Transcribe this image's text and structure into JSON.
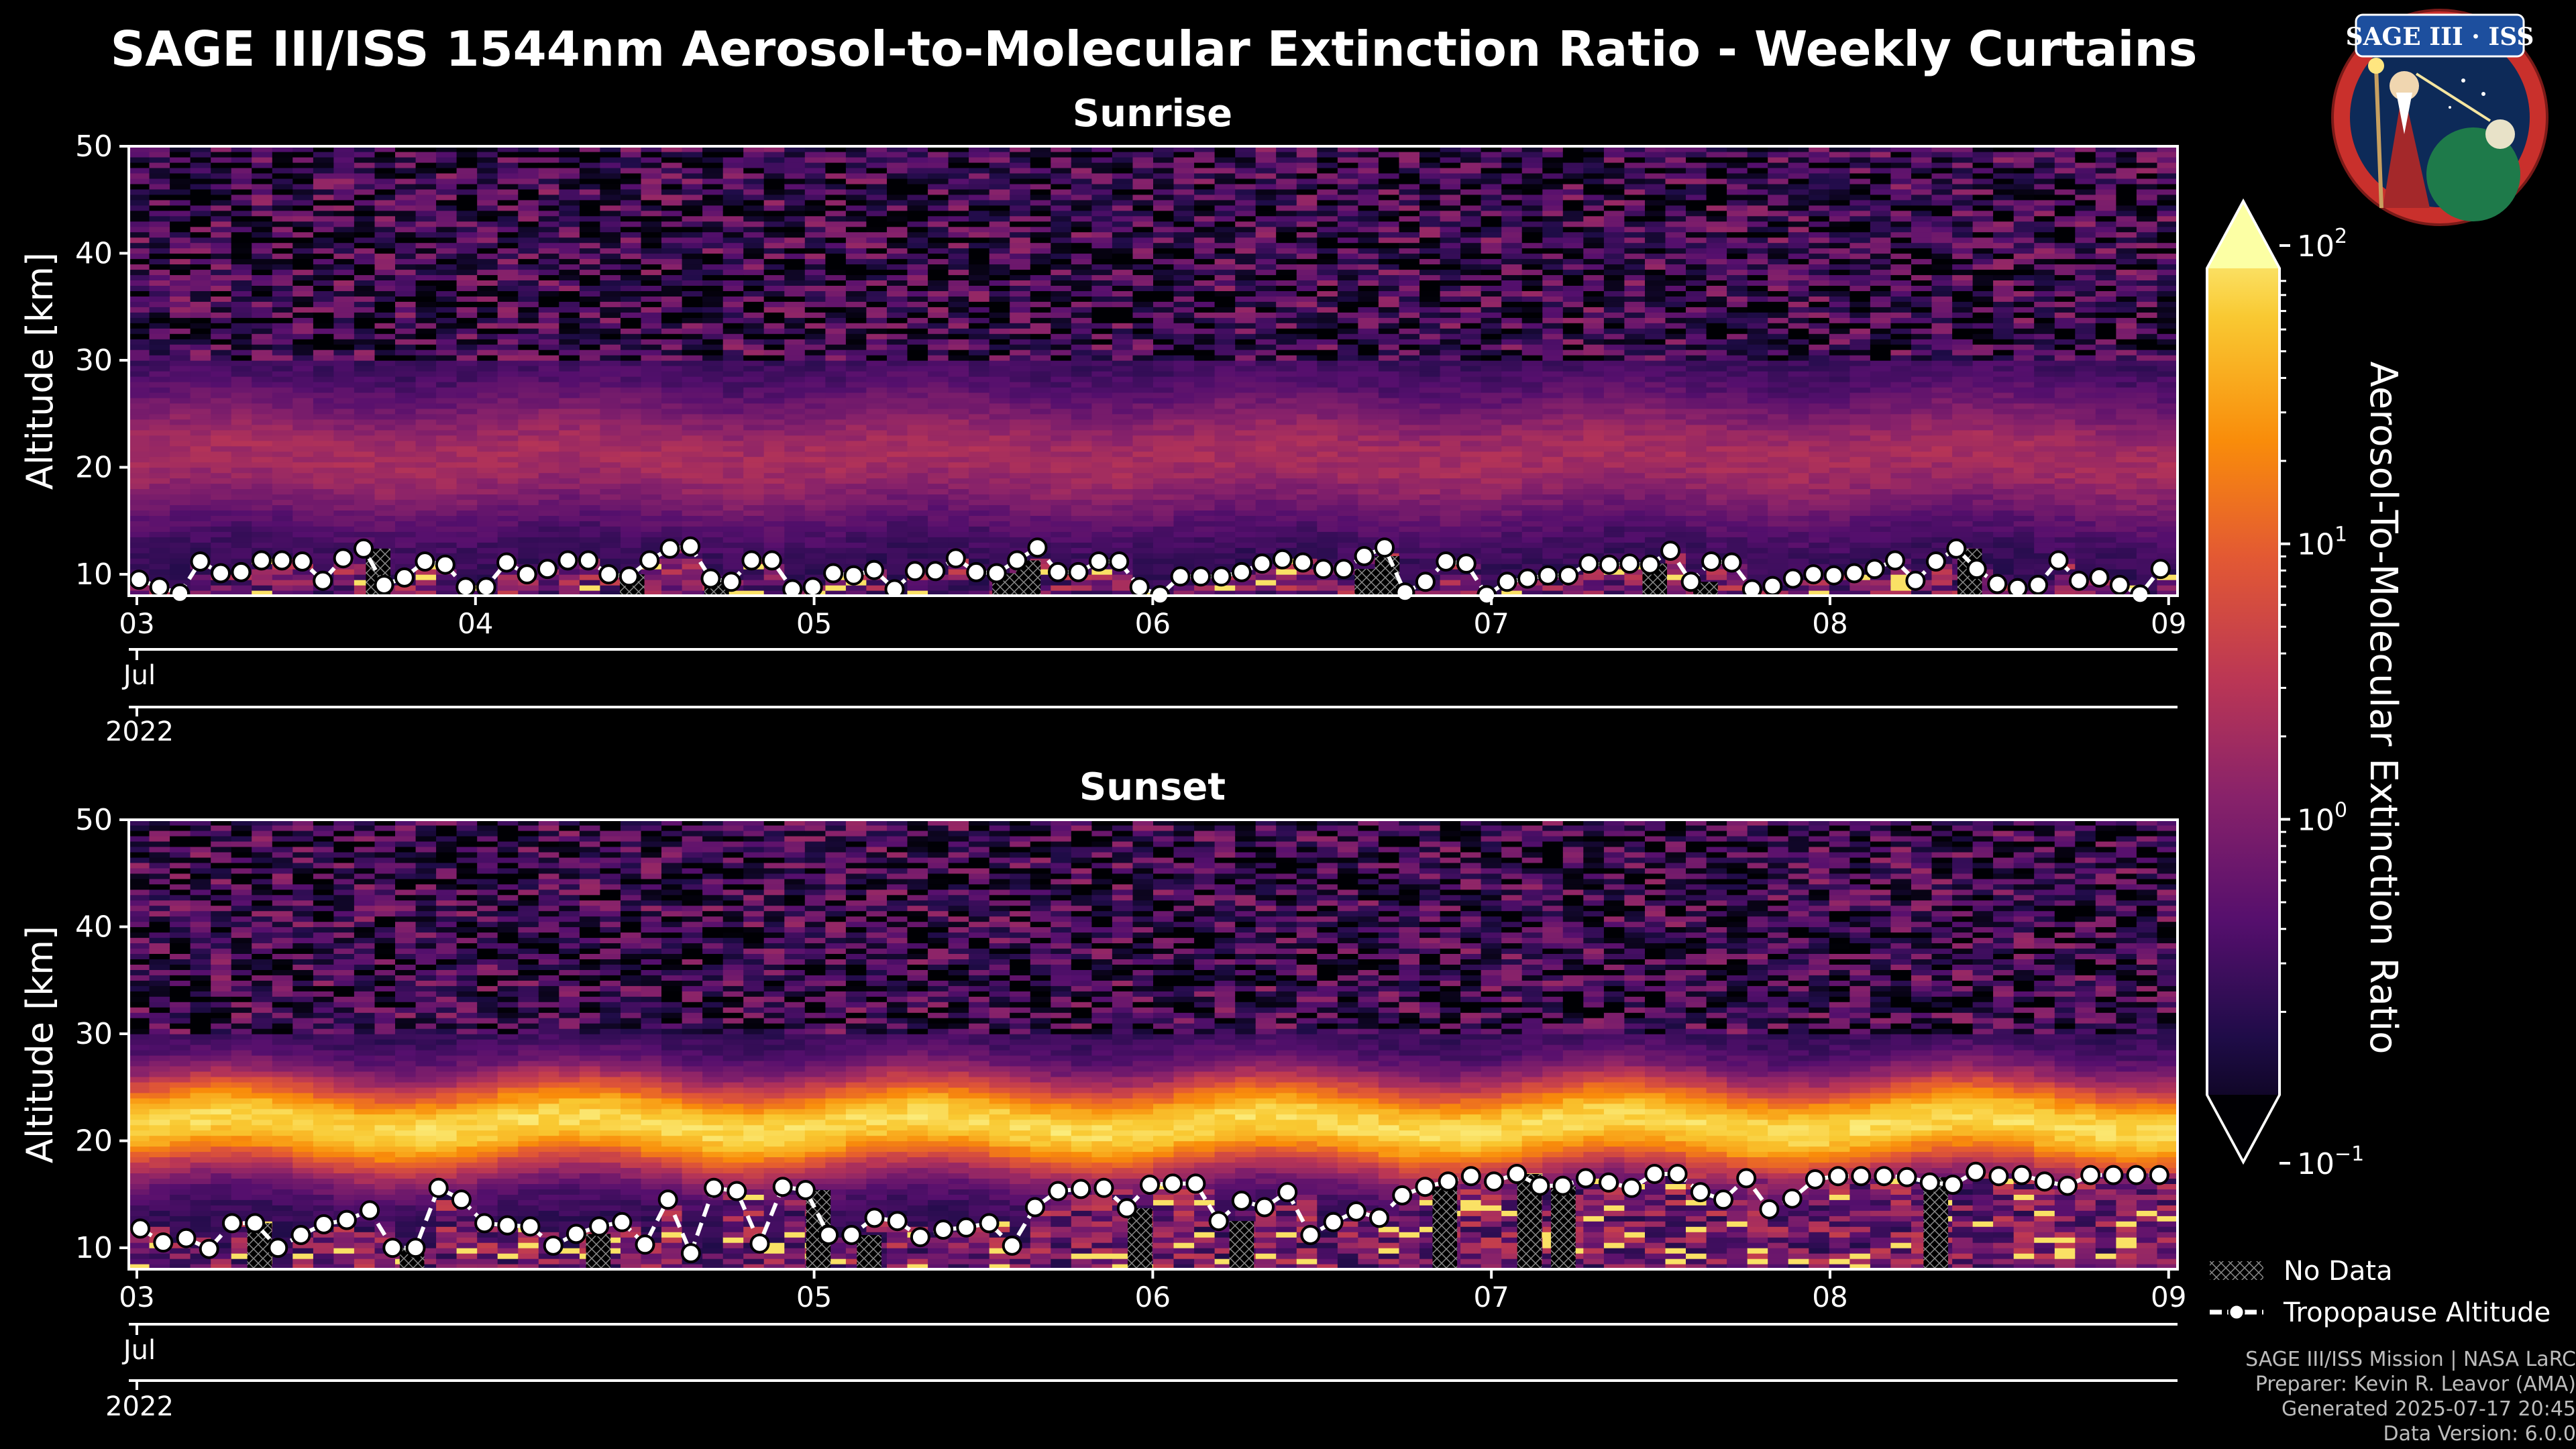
{
  "title": "SAGE III/ISS 1544nm Aerosol-to-Molecular Extinction Ratio - Weekly Curtains",
  "logo": {
    "line1": "SAGE III · ISS"
  },
  "colorbar": {
    "label": "Aerosol-To-Molecular Extinction Ratio",
    "scale": "log",
    "range": [
      0.1,
      100
    ],
    "ticks": [
      {
        "value": 100,
        "base": "10",
        "exp": "2"
      },
      {
        "value": 10,
        "base": "10",
        "exp": "1"
      },
      {
        "value": 1,
        "base": "10",
        "exp": "0"
      },
      {
        "value": 0.1,
        "base": "10",
        "exp": "−1"
      }
    ],
    "colormap": "inferno",
    "extend": "both"
  },
  "legend": {
    "no_data": "No Data",
    "tropopause": "Tropopause Altitude"
  },
  "footer": [
    "SAGE III/ISS Mission | NASA LaRC",
    "Preparer: Kevin R. Leavor (AMA)",
    "Generated 2025-07-17 20:45",
    "Data Version: 6.0.0"
  ],
  "colors": {
    "background": "#000000",
    "axes": "#ffffff",
    "tropopause_marker_fill": "#ffffff",
    "tropopause_marker_edge": "#000000"
  },
  "chart_data": [
    {
      "type": "heatmap",
      "title": "Sunrise",
      "ylabel": "Altitude [km]",
      "xlabel": "",
      "ylim": [
        8,
        50
      ],
      "yticks": [
        10,
        20,
        30,
        40
      ],
      "yticks_top": 50,
      "xlim_days": [
        3,
        9.05
      ],
      "xticks": [
        {
          "day": 3,
          "label": "03"
        },
        {
          "day": 4,
          "label": "04"
        },
        {
          "day": 5,
          "label": "05"
        },
        {
          "day": 6,
          "label": "06"
        },
        {
          "day": 7,
          "label": "07"
        },
        {
          "day": 8,
          "label": "08"
        },
        {
          "day": 9,
          "label": "09"
        }
      ],
      "month_label": "Jul",
      "year_label": "2022",
      "profile": {
        "background_log": -0.5,
        "layer_center_km": 21,
        "layer_width_km": 6,
        "layer_log": 0.35
      },
      "tropopause_km": [
        9.5,
        8.8,
        8.2,
        11.2,
        10.1,
        10.2,
        11.3,
        11.3,
        11.2,
        9.4,
        11.5,
        12.4,
        9.0,
        9.7,
        11.2,
        10.9,
        8.8,
        8.8,
        11.1,
        10.0,
        10.5,
        11.3,
        11.3,
        10.0,
        9.8,
        11.3,
        12.4,
        12.6,
        9.6,
        9.3,
        11.3,
        11.3,
        8.6,
        8.8,
        10.1,
        9.9,
        10.4,
        8.6,
        10.3,
        10.3,
        11.5,
        10.2,
        10.1,
        11.3,
        12.5,
        10.2,
        10.2,
        11.2,
        11.2,
        8.8,
        7.9,
        9.8,
        9.8,
        9.8,
        10.2,
        11.0,
        11.4,
        11.1,
        10.5,
        10.5,
        11.7,
        12.5,
        8.3,
        9.3,
        11.2,
        11.0,
        8.0,
        9.3,
        9.6,
        9.9,
        9.9,
        11.0,
        10.9,
        11.0,
        10.9,
        12.2,
        9.3,
        11.2,
        11.1,
        8.6,
        8.9,
        9.6,
        10.0,
        9.9,
        10.1,
        10.5,
        11.3,
        9.4,
        11.2,
        12.4,
        10.5,
        9.1,
        8.7,
        9.0,
        11.3,
        9.4,
        9.7,
        9.0,
        8.1,
        10.5
      ],
      "no_data_days": [
        3.7,
        4.45,
        4.7,
        5.55,
        5.62,
        6.62,
        6.68,
        7.47,
        7.62,
        8.4
      ]
    },
    {
      "type": "heatmap",
      "title": "Sunset",
      "ylabel": "Altitude [km]",
      "xlabel": "",
      "ylim": [
        8,
        50
      ],
      "yticks": [
        10,
        20,
        30,
        40
      ],
      "yticks_top": 50,
      "xlim_days": [
        3,
        9.05
      ],
      "xticks": [
        {
          "day": 3,
          "label": "03"
        },
        {
          "day": 5,
          "label": "05"
        },
        {
          "day": 6,
          "label": "06"
        },
        {
          "day": 7,
          "label": "07"
        },
        {
          "day": 8,
          "label": "08"
        },
        {
          "day": 9,
          "label": "09"
        }
      ],
      "month_label": "Jul",
      "year_label": "2022",
      "profile": {
        "background_log": -0.5,
        "layer_center_km": 21.5,
        "layer_width_km": 4.5,
        "layer_log": 1.75
      },
      "tropopause_km": [
        11.8,
        10.5,
        10.9,
        9.9,
        12.3,
        12.3,
        10.0,
        11.2,
        12.2,
        12.6,
        13.5,
        10.0,
        10.0,
        15.6,
        14.5,
        12.3,
        12.1,
        12.0,
        10.2,
        11.3,
        12.0,
        12.4,
        10.3,
        14.5,
        9.5,
        15.6,
        15.3,
        10.4,
        15.7,
        15.4,
        11.2,
        11.2,
        12.8,
        12.5,
        11.0,
        11.7,
        11.9,
        12.3,
        10.2,
        13.8,
        15.3,
        15.5,
        15.6,
        13.7,
        15.9,
        16.0,
        16.0,
        12.5,
        14.4,
        13.8,
        15.2,
        11.2,
        12.4,
        13.4,
        12.8,
        14.9,
        15.7,
        16.2,
        16.7,
        16.2,
        16.9,
        15.8,
        15.8,
        16.5,
        16.1,
        15.6,
        16.9,
        16.9,
        15.2,
        14.5,
        16.5,
        13.6,
        14.6,
        16.4,
        16.7,
        16.7,
        16.7,
        16.6,
        16.1,
        15.9,
        17.1,
        16.7,
        16.8,
        16.2,
        15.8,
        16.8,
        16.8,
        16.8,
        16.8
      ],
      "no_data_days": [
        3.35,
        3.8,
        4.35,
        5.0,
        5.15,
        5.95,
        6.25,
        6.85,
        7.1,
        7.2,
        8.3
      ]
    }
  ]
}
